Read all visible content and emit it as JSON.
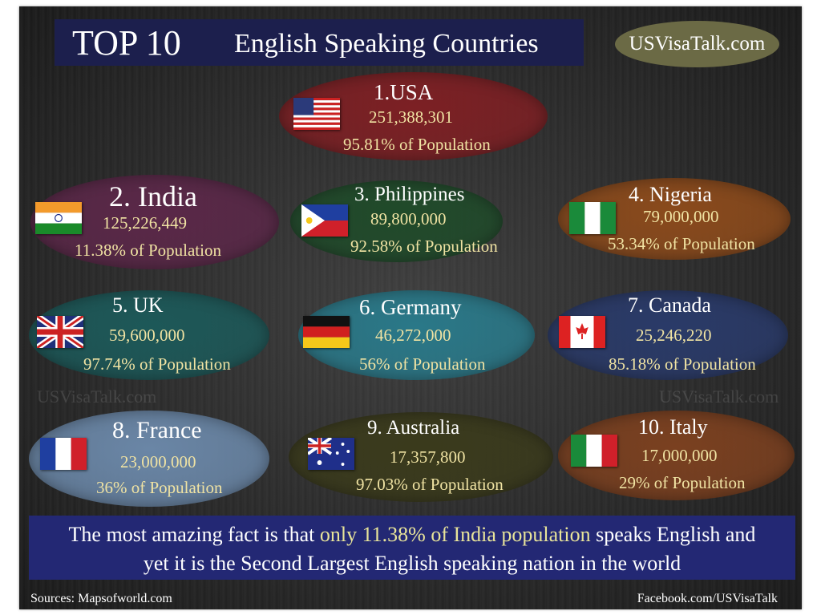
{
  "header": {
    "title_top": "TOP 10",
    "title_rest": "English Speaking Countries",
    "brand": "USVisaTalk.com"
  },
  "watermark": "USVisaTalk.com",
  "countries": [
    {
      "label": "1.USA",
      "speakers": "251,388,301",
      "percent": "95.81% of Population",
      "flag": "usa-flag-icon",
      "color": "#7c2024"
    },
    {
      "label": "2. India",
      "speakers": "125,226,449",
      "percent": "11.38% of Population",
      "flag": "india-flag-icon",
      "color": "#5a2848"
    },
    {
      "label": "3. Philippines",
      "speakers": "89,800,000",
      "percent": "92.58% of Population",
      "flag": "philippines-flag-icon",
      "color": "#204a2a"
    },
    {
      "label": "4. Nigeria",
      "speakers": "79,000,000",
      "percent": "53.34% of Population",
      "flag": "nigeria-flag-icon",
      "color": "#8a4a1c"
    },
    {
      "label": "5. UK",
      "speakers": "59,600,000",
      "percent": "97.74% of Population",
      "flag": "uk-flag-icon",
      "color": "#1d5858"
    },
    {
      "label": "6. Germany",
      "speakers": "46,272,000",
      "percent": "56% of Population",
      "flag": "germany-flag-icon",
      "color": "#2a7888"
    },
    {
      "label": "7. Canada",
      "speakers": "25,246,220",
      "percent": "85.18% of Population",
      "flag": "canada-flag-icon",
      "color": "#2a3a68"
    },
    {
      "label": "8. France",
      "speakers": "23,000,000",
      "percent": "36% of Population",
      "flag": "france-flag-icon",
      "color": "#6a86a6"
    },
    {
      "label": "9. Australia",
      "speakers": "17,357,800",
      "percent": "97.03% of Population",
      "flag": "australia-flag-icon",
      "color": "#3a3a1c"
    },
    {
      "label": "10. Italy",
      "speakers": "17,000,000",
      "percent": "29% of Population",
      "flag": "italy-flag-icon",
      "color": "#7a4020"
    }
  ],
  "fact": {
    "part1": "The most amazing fact is that ",
    "highlight": "only 11.38% of India population",
    "part2": " speaks English and",
    "line2": "yet it is the Second Largest English speaking nation in the world"
  },
  "footer": {
    "sources": "Sources: Mapsofworld.com",
    "facebook": "Facebook.com/USVisaTalk"
  }
}
